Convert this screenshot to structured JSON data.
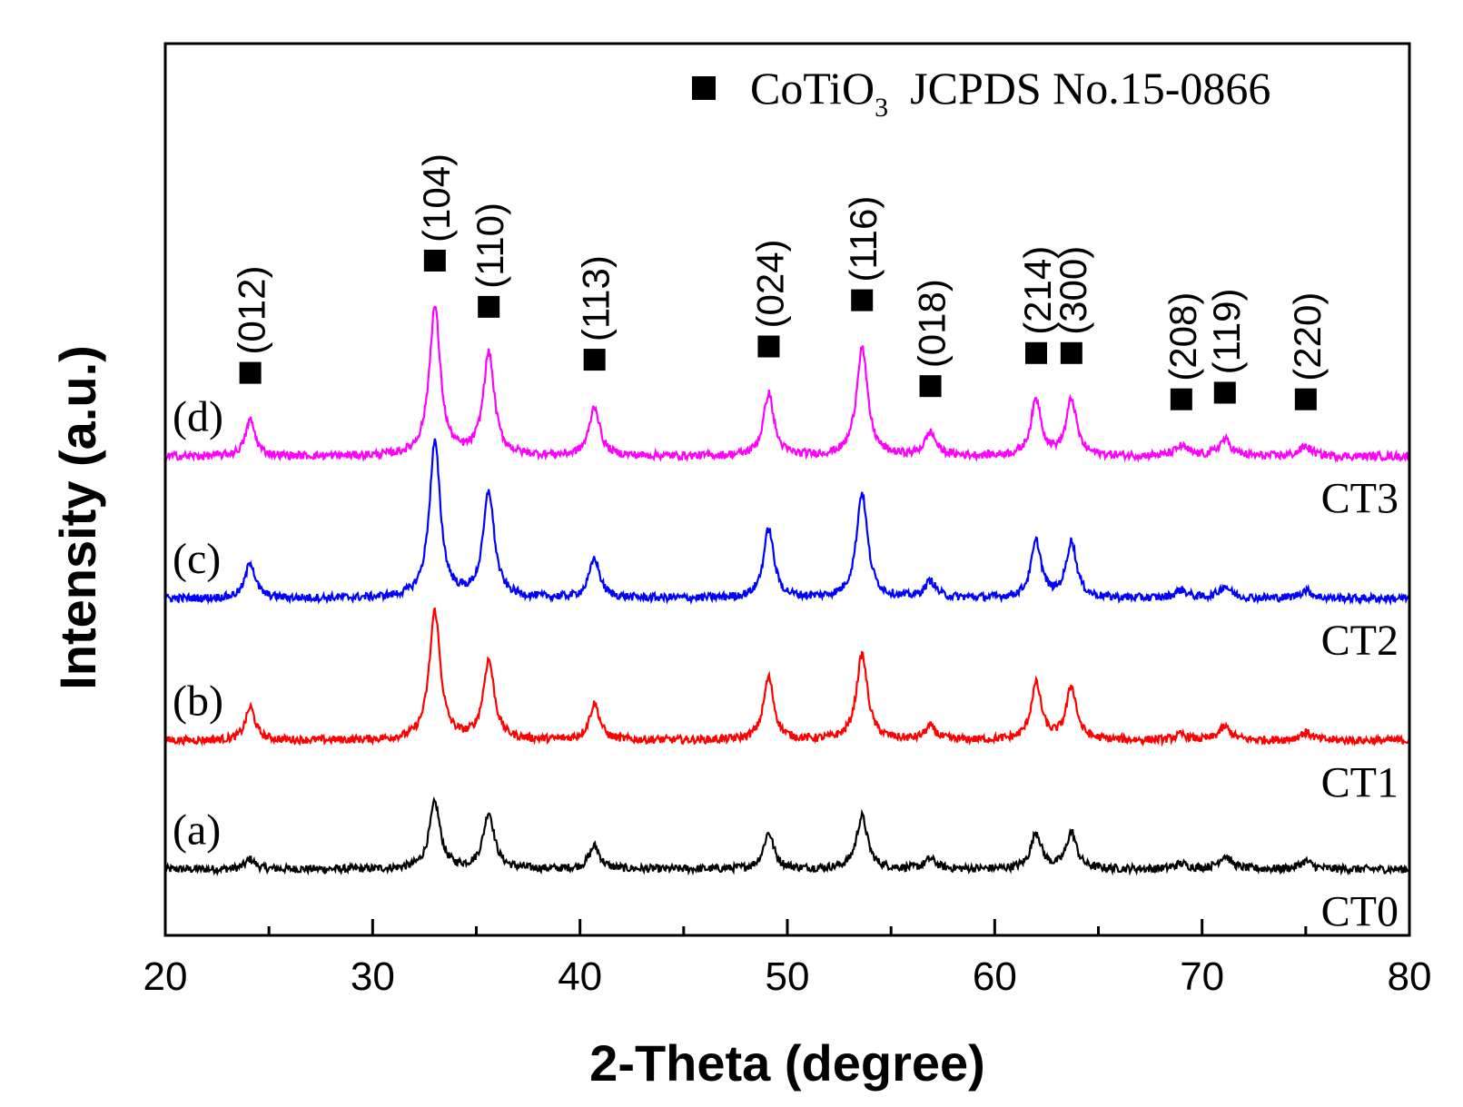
{
  "chart_data": {
    "type": "line",
    "title": "",
    "xlabel": "2-Theta (degree)",
    "ylabel": "Intensity (a.u.)",
    "xlim": [
      20,
      80
    ],
    "x_ticks": [
      20,
      30,
      40,
      50,
      60,
      70,
      80
    ],
    "y_ticks_shown": false,
    "grid": false,
    "legend": {
      "position": "top-right",
      "marker": "square",
      "formula_main": "CoTiO",
      "formula_sub": "3",
      "reference": "JCPDS No.15-0866"
    },
    "peaks": [
      {
        "two_theta": 24.1,
        "hkl": "(012)"
      },
      {
        "two_theta": 33.0,
        "hkl": "(104)"
      },
      {
        "two_theta": 35.6,
        "hkl": "(110)"
      },
      {
        "two_theta": 40.7,
        "hkl": "(113)"
      },
      {
        "two_theta": 49.1,
        "hkl": "(024)"
      },
      {
        "two_theta": 53.6,
        "hkl": "(116)"
      },
      {
        "two_theta": 56.9,
        "hkl": "(018)"
      },
      {
        "two_theta": 62.0,
        "hkl": "(214)"
      },
      {
        "two_theta": 63.7,
        "hkl": "(300)"
      },
      {
        "two_theta": 69.0,
        "hkl": "(208)"
      },
      {
        "two_theta": 71.1,
        "hkl": "(119)"
      },
      {
        "two_theta": 75.0,
        "hkl": "(220)"
      }
    ],
    "series": [
      {
        "name": "CT0",
        "letter": "(a)",
        "color": "#000000",
        "baseline": 0.0,
        "peak_heights": [
          0.15,
          1.0,
          0.85,
          0.35,
          0.55,
          0.8,
          0.15,
          0.55,
          0.55,
          0.08,
          0.2,
          0.12
        ]
      },
      {
        "name": "CT1",
        "letter": "(b)",
        "color": "#ff0000",
        "baseline": 1.95,
        "peak_heights": [
          0.5,
          1.95,
          1.2,
          0.55,
          0.95,
          1.3,
          0.2,
          0.85,
          0.8,
          0.08,
          0.2,
          0.12
        ]
      },
      {
        "name": "CT2",
        "letter": "(c)",
        "color": "#0000ff",
        "baseline": 4.1,
        "peak_heights": [
          0.55,
          2.35,
          1.6,
          0.6,
          1.05,
          1.6,
          0.25,
          0.85,
          0.85,
          0.12,
          0.18,
          0.12
        ]
      },
      {
        "name": "CT3",
        "letter": "(d)",
        "color": "#ff00ff",
        "baseline": 6.25,
        "peak_heights": [
          0.55,
          2.25,
          1.55,
          0.75,
          0.95,
          1.65,
          0.35,
          0.85,
          0.85,
          0.15,
          0.25,
          0.15
        ]
      }
    ],
    "y_range": [
      -1.0,
      12.5
    ]
  }
}
